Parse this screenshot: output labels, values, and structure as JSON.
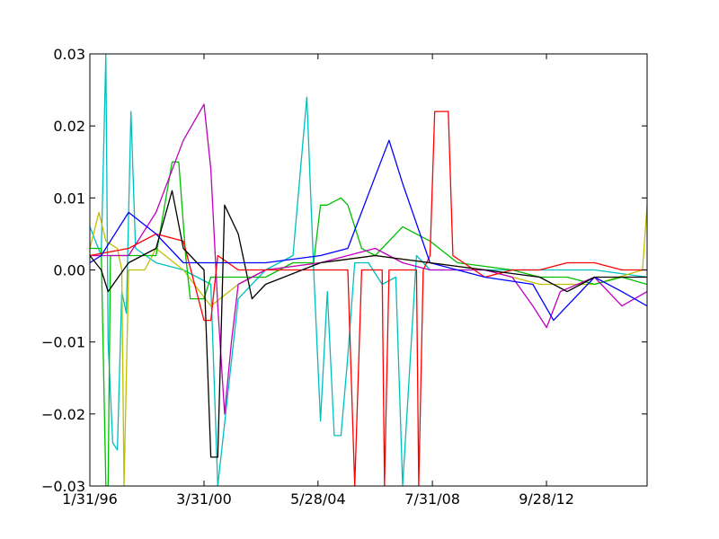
{
  "chart_data": {
    "type": "line",
    "title": "",
    "xlabel": "",
    "ylabel": "",
    "xlim": [
      "1996-01-31",
      "2016-05-31"
    ],
    "ylim": [
      -0.03,
      0.03
    ],
    "grid": false,
    "legend": "none",
    "x_ticks": [
      {
        "date": "1996-01-31",
        "label": "1/31/96"
      },
      {
        "date": "2000-03-31",
        "label": "3/31/00"
      },
      {
        "date": "2004-05-28",
        "label": "5/28/04"
      },
      {
        "date": "2008-07-31",
        "label": "7/31/08"
      },
      {
        "date": "2012-09-28",
        "label": "9/28/12"
      }
    ],
    "y_ticks": [
      {
        "value": -0.03,
        "label": "−0.03"
      },
      {
        "value": -0.02,
        "label": "−0.02"
      },
      {
        "value": -0.01,
        "label": "−0.01"
      },
      {
        "value": 0.0,
        "label": "0.00"
      },
      {
        "value": 0.01,
        "label": "0.01"
      },
      {
        "value": 0.02,
        "label": "0.02"
      },
      {
        "value": 0.03,
        "label": "0.03"
      }
    ],
    "series": [
      {
        "color": "#00bfbf",
        "points": [
          [
            "1996-01-31",
            0.006
          ],
          [
            "1996-06-30",
            0.002
          ],
          [
            "1996-08-31",
            0.03
          ],
          [
            "1996-09-30",
            -0.01
          ],
          [
            "1996-11-30",
            -0.024
          ],
          [
            "1997-01-31",
            -0.025
          ],
          [
            "1997-03-31",
            -0.003
          ],
          [
            "1997-05-31",
            -0.006
          ],
          [
            "1997-07-31",
            0.022
          ],
          [
            "1997-09-30",
            0.003
          ],
          [
            "1998-06-30",
            0.001
          ],
          [
            "1999-06-30",
            0.0
          ],
          [
            "2000-06-30",
            -0.002
          ],
          [
            "2000-09-30",
            -0.03
          ],
          [
            "2001-06-30",
            -0.004
          ],
          [
            "2002-06-30",
            0.0
          ],
          [
            "2003-06-30",
            0.002
          ],
          [
            "2003-12-31",
            0.024
          ],
          [
            "2004-03-31",
            0.0
          ],
          [
            "2004-06-30",
            -0.021
          ],
          [
            "2004-09-30",
            -0.003
          ],
          [
            "2004-12-31",
            -0.023
          ],
          [
            "2005-03-31",
            -0.023
          ],
          [
            "2005-06-30",
            -0.012
          ],
          [
            "2005-09-30",
            0.001
          ],
          [
            "2006-03-31",
            0.001
          ],
          [
            "2006-09-30",
            -0.002
          ],
          [
            "2007-03-31",
            -0.001
          ],
          [
            "2007-06-30",
            -0.03
          ],
          [
            "2007-12-31",
            0.002
          ],
          [
            "2008-06-30",
            0.0
          ],
          [
            "2010-06-30",
            0.0
          ],
          [
            "2012-06-30",
            0.0
          ],
          [
            "2014-06-30",
            0.0
          ],
          [
            "2016-05-31",
            -0.001
          ]
        ]
      },
      {
        "color": "#bfbf00",
        "points": [
          [
            "1996-01-31",
            0.003
          ],
          [
            "1996-05-31",
            0.008
          ],
          [
            "1996-08-31",
            0.004
          ],
          [
            "1997-01-31",
            0.003
          ],
          [
            "1997-03-31",
            0.0
          ],
          [
            "1997-04-30",
            -0.03
          ],
          [
            "1997-06-30",
            0.0
          ],
          [
            "1998-01-31",
            0.0
          ],
          [
            "1998-06-30",
            0.003
          ],
          [
            "1999-06-30",
            0.0
          ],
          [
            "2000-06-30",
            -0.005
          ],
          [
            "2001-06-30",
            -0.002
          ],
          [
            "2002-06-30",
            0.0
          ],
          [
            "2004-06-30",
            0.001
          ],
          [
            "2006-06-30",
            0.002
          ],
          [
            "2008-06-30",
            0.001
          ],
          [
            "2010-06-30",
            0.0
          ],
          [
            "2012-06-30",
            -0.002
          ],
          [
            "2014-06-30",
            -0.002
          ],
          [
            "2016-03-31",
            0.0
          ],
          [
            "2016-05-31",
            0.009
          ]
        ]
      },
      {
        "color": "#00bf00",
        "points": [
          [
            "1996-01-31",
            0.003
          ],
          [
            "1996-06-30",
            0.003
          ],
          [
            "1996-08-31",
            -0.03
          ],
          [
            "1996-09-30",
            -0.03
          ],
          [
            "1996-10-31",
            0.002
          ],
          [
            "1998-06-30",
            0.002
          ],
          [
            "1999-01-31",
            0.015
          ],
          [
            "1999-04-30",
            0.015
          ],
          [
            "1999-07-31",
            0.002
          ],
          [
            "1999-09-30",
            -0.004
          ],
          [
            "2000-03-31",
            -0.004
          ],
          [
            "2000-06-30",
            -0.001
          ],
          [
            "2002-06-30",
            -0.001
          ],
          [
            "2003-06-30",
            0.001
          ],
          [
            "2004-03-31",
            0.001
          ],
          [
            "2004-06-30",
            0.009
          ],
          [
            "2004-09-30",
            0.009
          ],
          [
            "2005-03-31",
            0.01
          ],
          [
            "2005-06-30",
            0.009
          ],
          [
            "2005-12-31",
            0.003
          ],
          [
            "2006-06-30",
            0.002
          ],
          [
            "2007-06-30",
            0.006
          ],
          [
            "2008-06-30",
            0.004
          ],
          [
            "2009-06-30",
            0.001
          ],
          [
            "2011-06-30",
            0.0
          ],
          [
            "2012-06-30",
            -0.001
          ],
          [
            "2013-06-30",
            -0.001
          ],
          [
            "2014-06-30",
            -0.002
          ],
          [
            "2015-06-30",
            -0.001
          ],
          [
            "2016-05-31",
            -0.002
          ]
        ]
      },
      {
        "color": "#bf00bf",
        "points": [
          [
            "1996-01-31",
            0.002
          ],
          [
            "1997-06-30",
            0.002
          ],
          [
            "1998-06-30",
            0.008
          ],
          [
            "1999-06-30",
            0.018
          ],
          [
            "2000-03-31",
            0.023
          ],
          [
            "2000-06-30",
            0.014
          ],
          [
            "2000-09-30",
            -0.005
          ],
          [
            "2000-12-31",
            -0.02
          ],
          [
            "2001-03-31",
            -0.01
          ],
          [
            "2001-06-30",
            -0.002
          ],
          [
            "2002-06-30",
            0.0
          ],
          [
            "2004-06-30",
            0.001
          ],
          [
            "2006-06-30",
            0.003
          ],
          [
            "2007-06-30",
            0.001
          ],
          [
            "2008-06-30",
            0.0
          ],
          [
            "2010-06-30",
            0.0
          ],
          [
            "2011-06-30",
            -0.001
          ],
          [
            "2012-03-31",
            -0.005
          ],
          [
            "2012-09-30",
            -0.008
          ],
          [
            "2013-03-31",
            -0.003
          ],
          [
            "2014-06-30",
            -0.001
          ],
          [
            "2015-06-30",
            -0.005
          ],
          [
            "2016-05-31",
            -0.003
          ]
        ]
      },
      {
        "color": "#ff0000",
        "points": [
          [
            "1996-01-31",
            0.002
          ],
          [
            "1997-06-30",
            0.003
          ],
          [
            "1998-06-30",
            0.005
          ],
          [
            "1999-06-30",
            0.004
          ],
          [
            "2000-03-31",
            -0.007
          ],
          [
            "2000-06-30",
            -0.007
          ],
          [
            "2000-09-30",
            0.002
          ],
          [
            "2001-06-30",
            0.0
          ],
          [
            "2003-06-30",
            0.0
          ],
          [
            "2005-06-30",
            0.0
          ],
          [
            "2005-09-30",
            -0.03
          ],
          [
            "2005-12-31",
            0.0
          ],
          [
            "2006-09-30",
            0.0
          ],
          [
            "2006-10-31",
            -0.03
          ],
          [
            "2006-12-31",
            0.0
          ],
          [
            "2007-12-31",
            0.0
          ],
          [
            "2008-01-31",
            -0.03
          ],
          [
            "2008-03-31",
            0.0
          ],
          [
            "2008-06-30",
            0.002
          ],
          [
            "2008-08-31",
            0.022
          ],
          [
            "2009-02-28",
            0.022
          ],
          [
            "2009-04-30",
            0.002
          ],
          [
            "2010-06-30",
            -0.001
          ],
          [
            "2011-06-30",
            0.0
          ],
          [
            "2012-06-30",
            0.0
          ],
          [
            "2013-06-30",
            0.001
          ],
          [
            "2014-06-30",
            0.001
          ],
          [
            "2015-06-30",
            0.0
          ],
          [
            "2016-05-31",
            0.0
          ]
        ]
      },
      {
        "color": "#0000ff",
        "points": [
          [
            "1996-01-31",
            0.001
          ],
          [
            "1996-06-30",
            0.002
          ],
          [
            "1997-06-30",
            0.008
          ],
          [
            "1998-06-30",
            0.005
          ],
          [
            "1999-06-30",
            0.001
          ],
          [
            "2000-06-30",
            0.001
          ],
          [
            "2002-06-30",
            0.001
          ],
          [
            "2004-06-30",
            0.002
          ],
          [
            "2005-06-30",
            0.003
          ],
          [
            "2006-06-30",
            0.013
          ],
          [
            "2006-12-31",
            0.018
          ],
          [
            "2007-06-30",
            0.012
          ],
          [
            "2008-06-30",
            0.001
          ],
          [
            "2009-06-30",
            0.0
          ],
          [
            "2010-06-30",
            -0.001
          ],
          [
            "2012-03-31",
            -0.002
          ],
          [
            "2012-12-31",
            -0.007
          ],
          [
            "2013-06-30",
            -0.005
          ],
          [
            "2014-06-30",
            -0.001
          ],
          [
            "2015-06-30",
            -0.003
          ],
          [
            "2016-05-31",
            -0.005
          ]
        ]
      },
      {
        "color": "#000000",
        "points": [
          [
            "1996-01-31",
            0.002
          ],
          [
            "1996-06-30",
            0.0
          ],
          [
            "1996-09-30",
            -0.003
          ],
          [
            "1997-06-30",
            0.001
          ],
          [
            "1998-06-30",
            0.003
          ],
          [
            "1999-01-31",
            0.011
          ],
          [
            "1999-06-30",
            0.003
          ],
          [
            "2000-03-31",
            0.0
          ],
          [
            "2000-06-30",
            -0.026
          ],
          [
            "2000-09-30",
            -0.026
          ],
          [
            "2000-12-31",
            0.009
          ],
          [
            "2001-06-30",
            0.005
          ],
          [
            "2001-12-31",
            -0.004
          ],
          [
            "2002-06-30",
            -0.002
          ],
          [
            "2004-06-30",
            0.001
          ],
          [
            "2006-06-30",
            0.002
          ],
          [
            "2008-06-30",
            0.001
          ],
          [
            "2010-06-30",
            0.0
          ],
          [
            "2012-06-30",
            -0.001
          ],
          [
            "2013-06-30",
            -0.003
          ],
          [
            "2014-06-30",
            -0.001
          ],
          [
            "2016-05-31",
            -0.001
          ]
        ]
      }
    ]
  }
}
